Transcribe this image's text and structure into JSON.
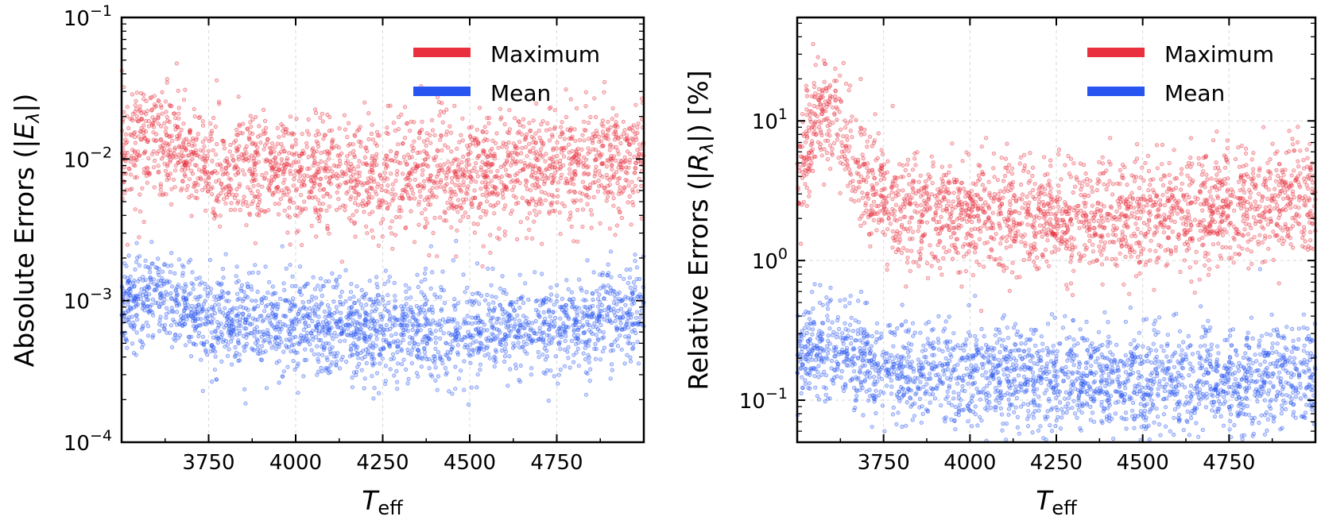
{
  "colors": {
    "maximum": "#e8303e",
    "mean": "#2855f0"
  },
  "chart_data": [
    {
      "type": "scatter",
      "id": "absolute",
      "scale_y": "log",
      "xlabel_main": "T",
      "xlabel_sub": "eff",
      "ylabel_prefix": "Absolute Errors (|",
      "ylabel_sym": "E",
      "ylabel_sub": "λ",
      "ylabel_suffix": "|)",
      "xlim": [
        3500,
        5000
      ],
      "ylim": [
        0.0001,
        0.1
      ],
      "x_ticks": [
        3750,
        4000,
        4250,
        4500,
        4750
      ],
      "x_tick_labels": [
        "3750",
        "4000",
        "4250",
        "4500",
        "4750"
      ],
      "y_ticks": [
        0.0001,
        0.001,
        0.01,
        0.1
      ],
      "y_tick_labels": [
        {
          "base": "10",
          "exp": "−4"
        },
        {
          "base": "10",
          "exp": "−3"
        },
        {
          "base": "10",
          "exp": "−2"
        },
        {
          "base": "10",
          "exp": "−1"
        }
      ],
      "legend": {
        "position": "top-right",
        "entries": [
          "Maximum",
          "Mean"
        ]
      },
      "series": [
        {
          "name": "Maximum",
          "color_key": "maximum",
          "trend_x": [
            3500,
            3600,
            3750,
            4000,
            4250,
            4500,
            4750,
            5000
          ],
          "trend_y": [
            0.012,
            0.014,
            0.0085,
            0.0075,
            0.0075,
            0.008,
            0.0085,
            0.01
          ],
          "log_spread": 0.2,
          "n_points": 2200
        },
        {
          "name": "Mean",
          "color_key": "mean",
          "trend_x": [
            3500,
            3600,
            3750,
            4000,
            4250,
            4500,
            4750,
            5000
          ],
          "trend_y": [
            0.00095,
            0.0011,
            0.00075,
            0.00065,
            0.0006,
            0.0006,
            0.00065,
            0.0009
          ],
          "log_spread": 0.17,
          "n_points": 2200
        }
      ]
    },
    {
      "type": "scatter",
      "id": "relative",
      "scale_y": "log",
      "xlabel_main": "T",
      "xlabel_sub": "eff",
      "ylabel_prefix": "Relative Errors (|",
      "ylabel_sym": "R",
      "ylabel_sub": "λ",
      "ylabel_suffix": "|) [%]",
      "xlim": [
        3500,
        5000
      ],
      "ylim": [
        0.05,
        55
      ],
      "x_ticks": [
        3750,
        4000,
        4250,
        4500,
        4750
      ],
      "x_tick_labels": [
        "3750",
        "4000",
        "4250",
        "4500",
        "4750"
      ],
      "y_ticks": [
        0.1,
        1,
        10
      ],
      "y_tick_labels": [
        {
          "base": "10",
          "exp": "−1"
        },
        {
          "base": "10",
          "exp": "0"
        },
        {
          "base": "10",
          "exp": "1"
        }
      ],
      "legend": {
        "position": "top-right",
        "entries": [
          "Maximum",
          "Mean"
        ]
      },
      "series": [
        {
          "name": "Maximum",
          "color_key": "maximum",
          "trend_x": [
            3500,
            3560,
            3620,
            3680,
            3750,
            4000,
            4250,
            4500,
            4750,
            5000
          ],
          "trend_y": [
            3.5,
            12,
            10,
            4.5,
            2.5,
            2.1,
            2.0,
            2.1,
            2.4,
            2.8
          ],
          "log_spread": 0.2,
          "n_points": 2200
        },
        {
          "name": "Mean",
          "color_key": "mean",
          "trend_x": [
            3500,
            3600,
            3750,
            4000,
            4250,
            4500,
            4750,
            5000
          ],
          "trend_y": [
            0.2,
            0.23,
            0.17,
            0.15,
            0.14,
            0.14,
            0.14,
            0.16
          ],
          "log_spread": 0.18,
          "n_points": 2200
        }
      ]
    }
  ]
}
